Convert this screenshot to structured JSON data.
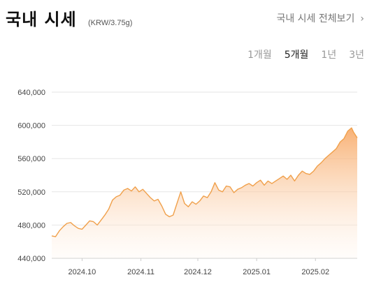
{
  "header": {
    "title": "국내 시세",
    "unit": "(KRW/3.75g)",
    "view_all": "국내 시세 전체보기",
    "view_all_icon": "chevron-right-icon"
  },
  "ranges": [
    {
      "label": "1개월",
      "active": false
    },
    {
      "label": "5개월",
      "active": true
    },
    {
      "label": "1년",
      "active": false
    },
    {
      "label": "3년",
      "active": false
    }
  ],
  "colors": {
    "line": "#f0a04b",
    "fill_top": "#f7a35c",
    "fill_bottom": "#fff6ee",
    "grid": "#e6e6e6"
  },
  "chart_data": {
    "type": "area",
    "ylim": [
      440000,
      640000
    ],
    "yticks": [
      "440,000",
      "480,000",
      "520,000",
      "560,000",
      "600,000",
      "640,000"
    ],
    "ytick_values": [
      440000,
      480000,
      520000,
      560000,
      600000,
      640000
    ],
    "xticks": [
      "2024.10",
      "2024.11",
      "2024.12",
      "2025.01",
      "2025.02"
    ],
    "xtick_dates": [
      "2024-10-01",
      "2024-11-01",
      "2024-12-01",
      "2025-01-01",
      "2025-02-01"
    ],
    "xrange": [
      "2024-09-15",
      "2025-02-23"
    ],
    "grid": true,
    "series": [
      {
        "x": [
          "2024-09-15",
          "2024-09-17",
          "2024-09-19",
          "2024-09-21",
          "2024-09-23",
          "2024-09-25",
          "2024-09-27",
          "2024-09-29",
          "2024-10-01",
          "2024-10-03",
          "2024-10-05",
          "2024-10-07",
          "2024-10-09",
          "2024-10-11",
          "2024-10-13",
          "2024-10-15",
          "2024-10-17",
          "2024-10-19",
          "2024-10-21",
          "2024-10-23",
          "2024-10-25",
          "2024-10-27",
          "2024-10-29",
          "2024-10-31",
          "2024-11-02",
          "2024-11-04",
          "2024-11-06",
          "2024-11-08",
          "2024-11-10",
          "2024-11-12",
          "2024-11-14",
          "2024-11-16",
          "2024-11-18",
          "2024-11-20",
          "2024-11-22",
          "2024-11-24",
          "2024-11-26",
          "2024-11-28",
          "2024-11-30",
          "2024-12-02",
          "2024-12-04",
          "2024-12-06",
          "2024-12-08",
          "2024-12-10",
          "2024-12-12",
          "2024-12-14",
          "2024-12-16",
          "2024-12-18",
          "2024-12-20",
          "2024-12-22",
          "2024-12-24",
          "2024-12-26",
          "2024-12-28",
          "2024-12-30",
          "2025-01-01",
          "2025-01-03",
          "2025-01-05",
          "2025-01-07",
          "2025-01-09",
          "2025-01-11",
          "2025-01-13",
          "2025-01-15",
          "2025-01-17",
          "2025-01-19",
          "2025-01-21",
          "2025-01-23",
          "2025-01-25",
          "2025-01-27",
          "2025-01-29",
          "2025-01-31",
          "2025-02-02",
          "2025-02-04",
          "2025-02-06",
          "2025-02-08",
          "2025-02-10",
          "2025-02-12",
          "2025-02-14",
          "2025-02-16",
          "2025-02-18",
          "2025-02-20",
          "2025-02-21",
          "2025-02-23"
        ],
        "values": [
          467000,
          466000,
          473000,
          478000,
          482000,
          483000,
          479000,
          476000,
          475000,
          480000,
          485000,
          484000,
          480000,
          486000,
          492000,
          499000,
          510000,
          514000,
          516000,
          522000,
          524000,
          521000,
          526000,
          520000,
          523000,
          518000,
          513000,
          509000,
          511000,
          503000,
          493000,
          490000,
          492000,
          506000,
          520000,
          506000,
          502000,
          508000,
          505000,
          509000,
          515000,
          513000,
          520000,
          531000,
          522000,
          520000,
          527000,
          526000,
          519000,
          523000,
          525000,
          528000,
          530000,
          527000,
          531000,
          534000,
          528000,
          533000,
          530000,
          533000,
          536000,
          539000,
          535000,
          540000,
          533000,
          540000,
          545000,
          542000,
          541000,
          545000,
          551000,
          555000,
          560000,
          564000,
          568000,
          572000,
          580000,
          584000,
          593000,
          597000,
          592000,
          585000
        ]
      }
    ]
  }
}
